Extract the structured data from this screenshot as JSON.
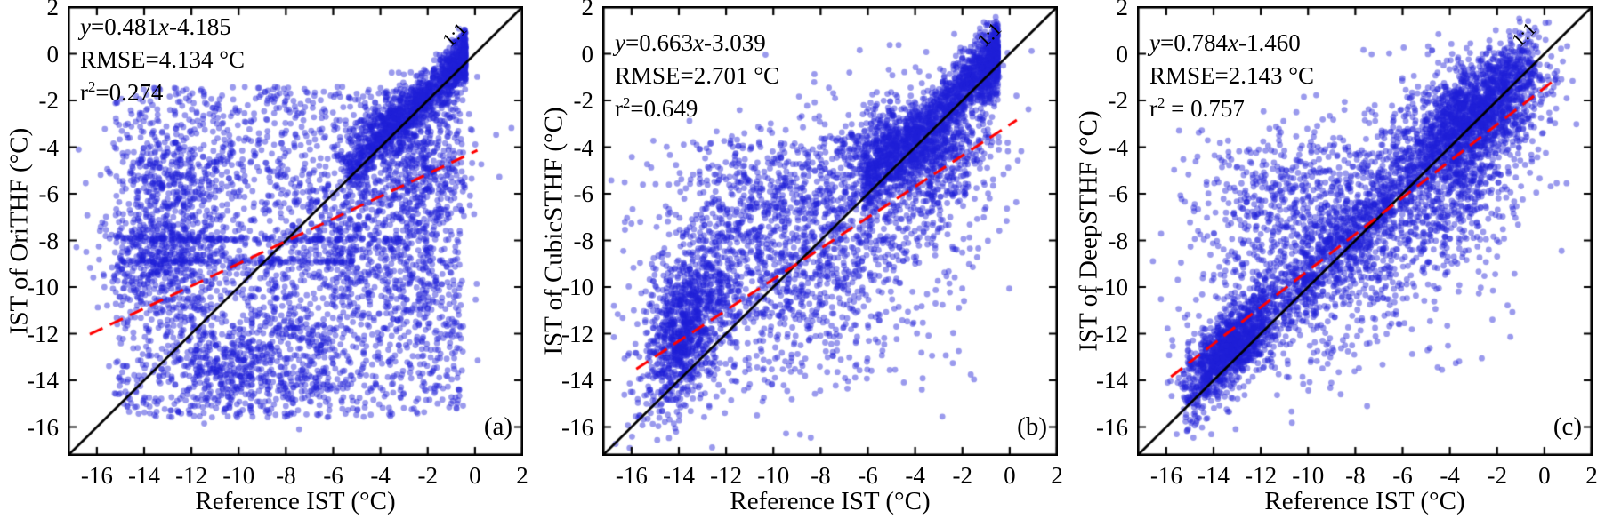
{
  "styles": {
    "background": "#ffffff",
    "point_color": "#1e1ed7",
    "point_alpha": 0.45,
    "identity_line_color": "#000000",
    "fit_line_color": "#ff0000",
    "text_color": "#000000"
  },
  "chart_data": {
    "type": "scatter",
    "grid": false,
    "x_range": [
      -17.2,
      2
    ],
    "y_range": [
      -17.2,
      2
    ],
    "xticks": [
      -16,
      -14,
      -12,
      -10,
      -8,
      -6,
      -4,
      -2,
      0,
      2
    ],
    "yticks": [
      2,
      0,
      -2,
      -4,
      -6,
      -8,
      -10,
      -12,
      -14,
      -16
    ],
    "identity_line": {
      "label": "1:1",
      "from": [
        -17.2,
        -17.2
      ],
      "to": [
        2,
        2
      ]
    },
    "panels": [
      {
        "tag": "(a)",
        "ylabel": "IST of OriTHF (°C)",
        "xlabel": "Reference IST (°C)",
        "eq": {
          "y_var": "y",
          "mid": "=0.481",
          "x_var": "x",
          "tail": "-4.185"
        },
        "rmse": "RMSE=4.134 °C",
        "r2": {
          "base": "r",
          "sup": "2",
          "rest": "=0.274"
        },
        "one_to_one": "1:1",
        "fit": {
          "slope": 0.481,
          "intercept": -4.185,
          "x_start": -16.3,
          "x_end": 0.1,
          "rmse_c": 4.134,
          "r2": 0.274
        },
        "n_points_approx": 5960,
        "clusters": [
          {
            "type": "uniform",
            "n": 2300,
            "x0": -15.3,
            "x1": -0.5,
            "y0": -15.6,
            "y1": -1.4
          },
          {
            "type": "gauss",
            "n": 420,
            "cx": -13.2,
            "cy": -8.9,
            "sx": 1.2,
            "sy": 1.4,
            "rho": 0.1
          },
          {
            "type": "gauss",
            "n": 260,
            "cx": -10.6,
            "cy": -13.4,
            "sx": 1.3,
            "sy": 0.9,
            "rho": 0
          },
          {
            "type": "gauss",
            "n": 280,
            "cx": -12.6,
            "cy": -5.4,
            "sx": 1.4,
            "sy": 1.2,
            "rho": 0
          },
          {
            "type": "gauss",
            "n": 220,
            "cx": -7.5,
            "cy": -12.5,
            "sx": 1.5,
            "sy": 1.2,
            "rho": 0
          },
          {
            "type": "gauss",
            "n": 220,
            "cx": -5.5,
            "cy": -7.8,
            "sx": 1.3,
            "sy": 1.5,
            "rho": 0
          },
          {
            "type": "gauss",
            "n": 200,
            "cx": -2.6,
            "cy": -9.2,
            "sx": 1.2,
            "sy": 2.0,
            "rho": 0
          },
          {
            "type": "gauss",
            "n": 300,
            "cx": -2.2,
            "cy": -4.8,
            "sx": 1.1,
            "sy": 1.2,
            "rho": 0.2
          },
          {
            "type": "gauss",
            "n": 350,
            "cx": -3.7,
            "cy": -3.1,
            "sx": 0.95,
            "sy": 0.85,
            "rho": 0.6
          },
          {
            "type": "diag",
            "n": 1150,
            "x0": -5.4,
            "x1": -0.4,
            "skew": 2.0,
            "dy": 0.3,
            "sd": 0.55
          },
          {
            "type": "hband",
            "n": 140,
            "y": -7.95,
            "x0": -15.0,
            "x1": -3.0,
            "sd": 0.06
          },
          {
            "type": "hband",
            "n": 120,
            "y": -8.9,
            "x0": -15.0,
            "x1": -5.0,
            "sd": 0.06
          }
        ]
      },
      {
        "tag": "(b)",
        "ylabel": "IST of CubicSTHF (°C)",
        "xlabel": "Reference IST (°C)",
        "eq": {
          "y_var": "y",
          "mid": "=0.663",
          "x_var": "x",
          "tail": "-3.039"
        },
        "rmse": "RMSE=2.701 °C",
        "r2": {
          "base": "r",
          "sup": "2",
          "rest": "=0.649"
        },
        "one_to_one": "1:1",
        "fit": {
          "slope": 0.663,
          "intercept": -3.039,
          "x_start": -15.8,
          "x_end": 0.3,
          "rmse_c": 2.701,
          "r2": 0.649
        },
        "n_points_approx": 5430,
        "clusters": [
          {
            "type": "diag",
            "n": 1700,
            "x0": -6.2,
            "x1": -0.5,
            "skew": 1.8,
            "dy": 0.45,
            "sd": 0.75
          },
          {
            "type": "gauss",
            "n": 450,
            "cx": -2.9,
            "cy": -4.6,
            "sx": 1.1,
            "sy": 1.4,
            "rho": 0.3
          },
          {
            "type": "gauss",
            "n": 950,
            "cx": -13.7,
            "cy": -11.7,
            "sx": 0.9,
            "sy": 1.9,
            "rho": 0.55
          },
          {
            "type": "gauss",
            "n": 1500,
            "cx": -8.6,
            "cy": -8.6,
            "sx": 3.3,
            "sy": 2.9,
            "rho": 0.45
          },
          {
            "type": "gauss",
            "n": 350,
            "cx": -5.2,
            "cy": -3.8,
            "sx": 1.1,
            "sy": 0.9,
            "rho": 0.3
          },
          {
            "type": "gauss",
            "n": 260,
            "cx": -10.8,
            "cy": -5.8,
            "sx": 2.0,
            "sy": 1.1,
            "rho": 0.1
          },
          {
            "type": "uniform",
            "n": 220,
            "x0": -15.2,
            "x1": -1.2,
            "y0": -14.6,
            "y1": -3.2
          }
        ]
      },
      {
        "tag": "(c)",
        "ylabel": "IST of DeepSTHF (°C)",
        "xlabel": "Reference IST (°C)",
        "eq": {
          "y_var": "y",
          "mid": "=0.784",
          "x_var": "x",
          "tail": "-1.460"
        },
        "rmse": "RMSE=2.143 °C",
        "r2": {
          "base": "r",
          "sup": "2",
          "rest": " = 0.757"
        },
        "one_to_one": "1:1",
        "fit": {
          "slope": 0.784,
          "intercept": -1.46,
          "x_start": -15.8,
          "x_end": 0.3,
          "rmse_c": 2.143,
          "r2": 0.757
        },
        "n_points_approx": 5760,
        "clusters": [
          {
            "type": "diag",
            "n": 1500,
            "x0": -15.3,
            "x1": -0.4,
            "skew": 1.0,
            "dy": 0.35,
            "sd": 0.8
          },
          {
            "type": "gauss",
            "n": 820,
            "cx": -13.3,
            "cy": -12.5,
            "sx": 0.85,
            "sy": 1.05,
            "rho": 0.6
          },
          {
            "type": "gauss",
            "n": 1250,
            "cx": -2.9,
            "cy": -2.4,
            "sx": 1.5,
            "sy": 1.3,
            "rho": 0.5
          },
          {
            "type": "gauss",
            "n": 1350,
            "cx": -8.2,
            "cy": -7.8,
            "sx": 3.2,
            "sy": 2.8,
            "rho": 0.55
          },
          {
            "type": "gauss",
            "n": 420,
            "cx": -3.5,
            "cy": -5.4,
            "sx": 1.3,
            "sy": 1.5,
            "rho": 0.3
          },
          {
            "type": "gauss",
            "n": 240,
            "cx": -11.3,
            "cy": -5.9,
            "sx": 1.8,
            "sy": 1.1,
            "rho": 0
          },
          {
            "type": "uniform",
            "n": 180,
            "x0": -15.0,
            "x1": -1.2,
            "y0": -13.6,
            "y1": -3.2
          }
        ]
      }
    ]
  }
}
